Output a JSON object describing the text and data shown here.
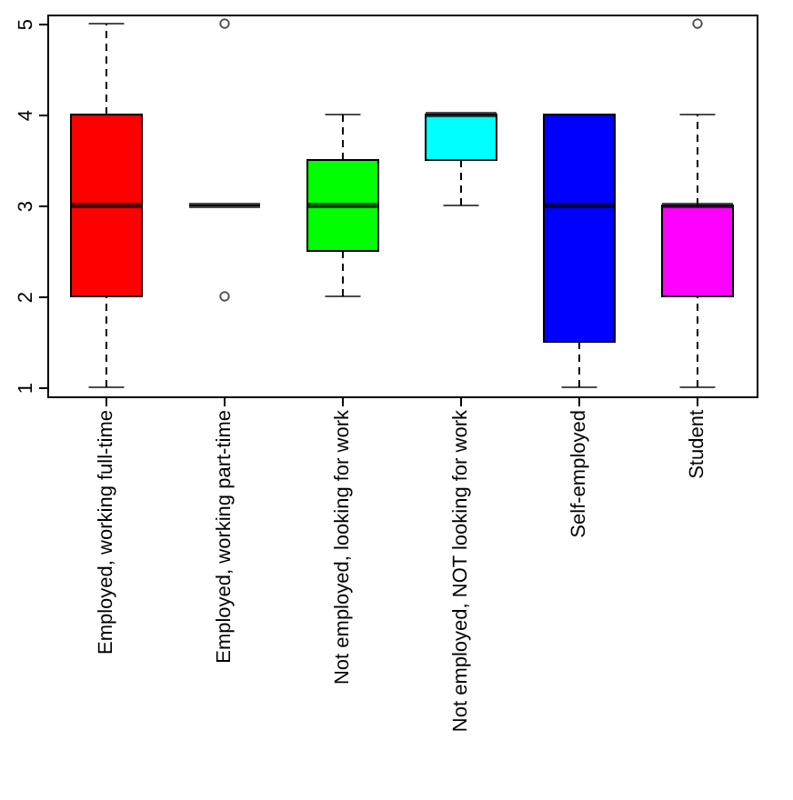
{
  "chart_data": {
    "type": "box",
    "categories": [
      "Employed, working full-time",
      "Employed, working part-time",
      "Not employed, looking for work",
      "Not employed, NOT looking for work",
      "Self-employed",
      "Student"
    ],
    "boxes": [
      {
        "low": 1,
        "q1": 2,
        "median": 3,
        "q3": 4,
        "high": 5
      },
      {
        "low": 3,
        "q1": 3,
        "median": 3,
        "q3": 3,
        "high": 3,
        "outliers": [
          5,
          2
        ]
      },
      {
        "low": 2,
        "q1": 2.5,
        "median": 3,
        "q3": 3.5,
        "high": 4
      },
      {
        "low": 3,
        "q1": 3.5,
        "median": 4,
        "q3": 4,
        "high": 4
      },
      {
        "low": 1,
        "q1": 1.5,
        "median": 3,
        "q3": 4,
        "high": 4
      },
      {
        "low": 1,
        "q1": 2,
        "median": 3,
        "q3": 3,
        "high": 4,
        "outliers": [
          5
        ]
      }
    ],
    "colors": [
      "#ff0000",
      "#000000",
      "#00ff00",
      "#00ffff",
      "#0000ff",
      "#ff00ff"
    ],
    "ylim": [
      0.9,
      5.1
    ],
    "yticks": [
      1,
      2,
      3,
      4,
      5
    ],
    "grid": false,
    "line_style": "dashed"
  }
}
